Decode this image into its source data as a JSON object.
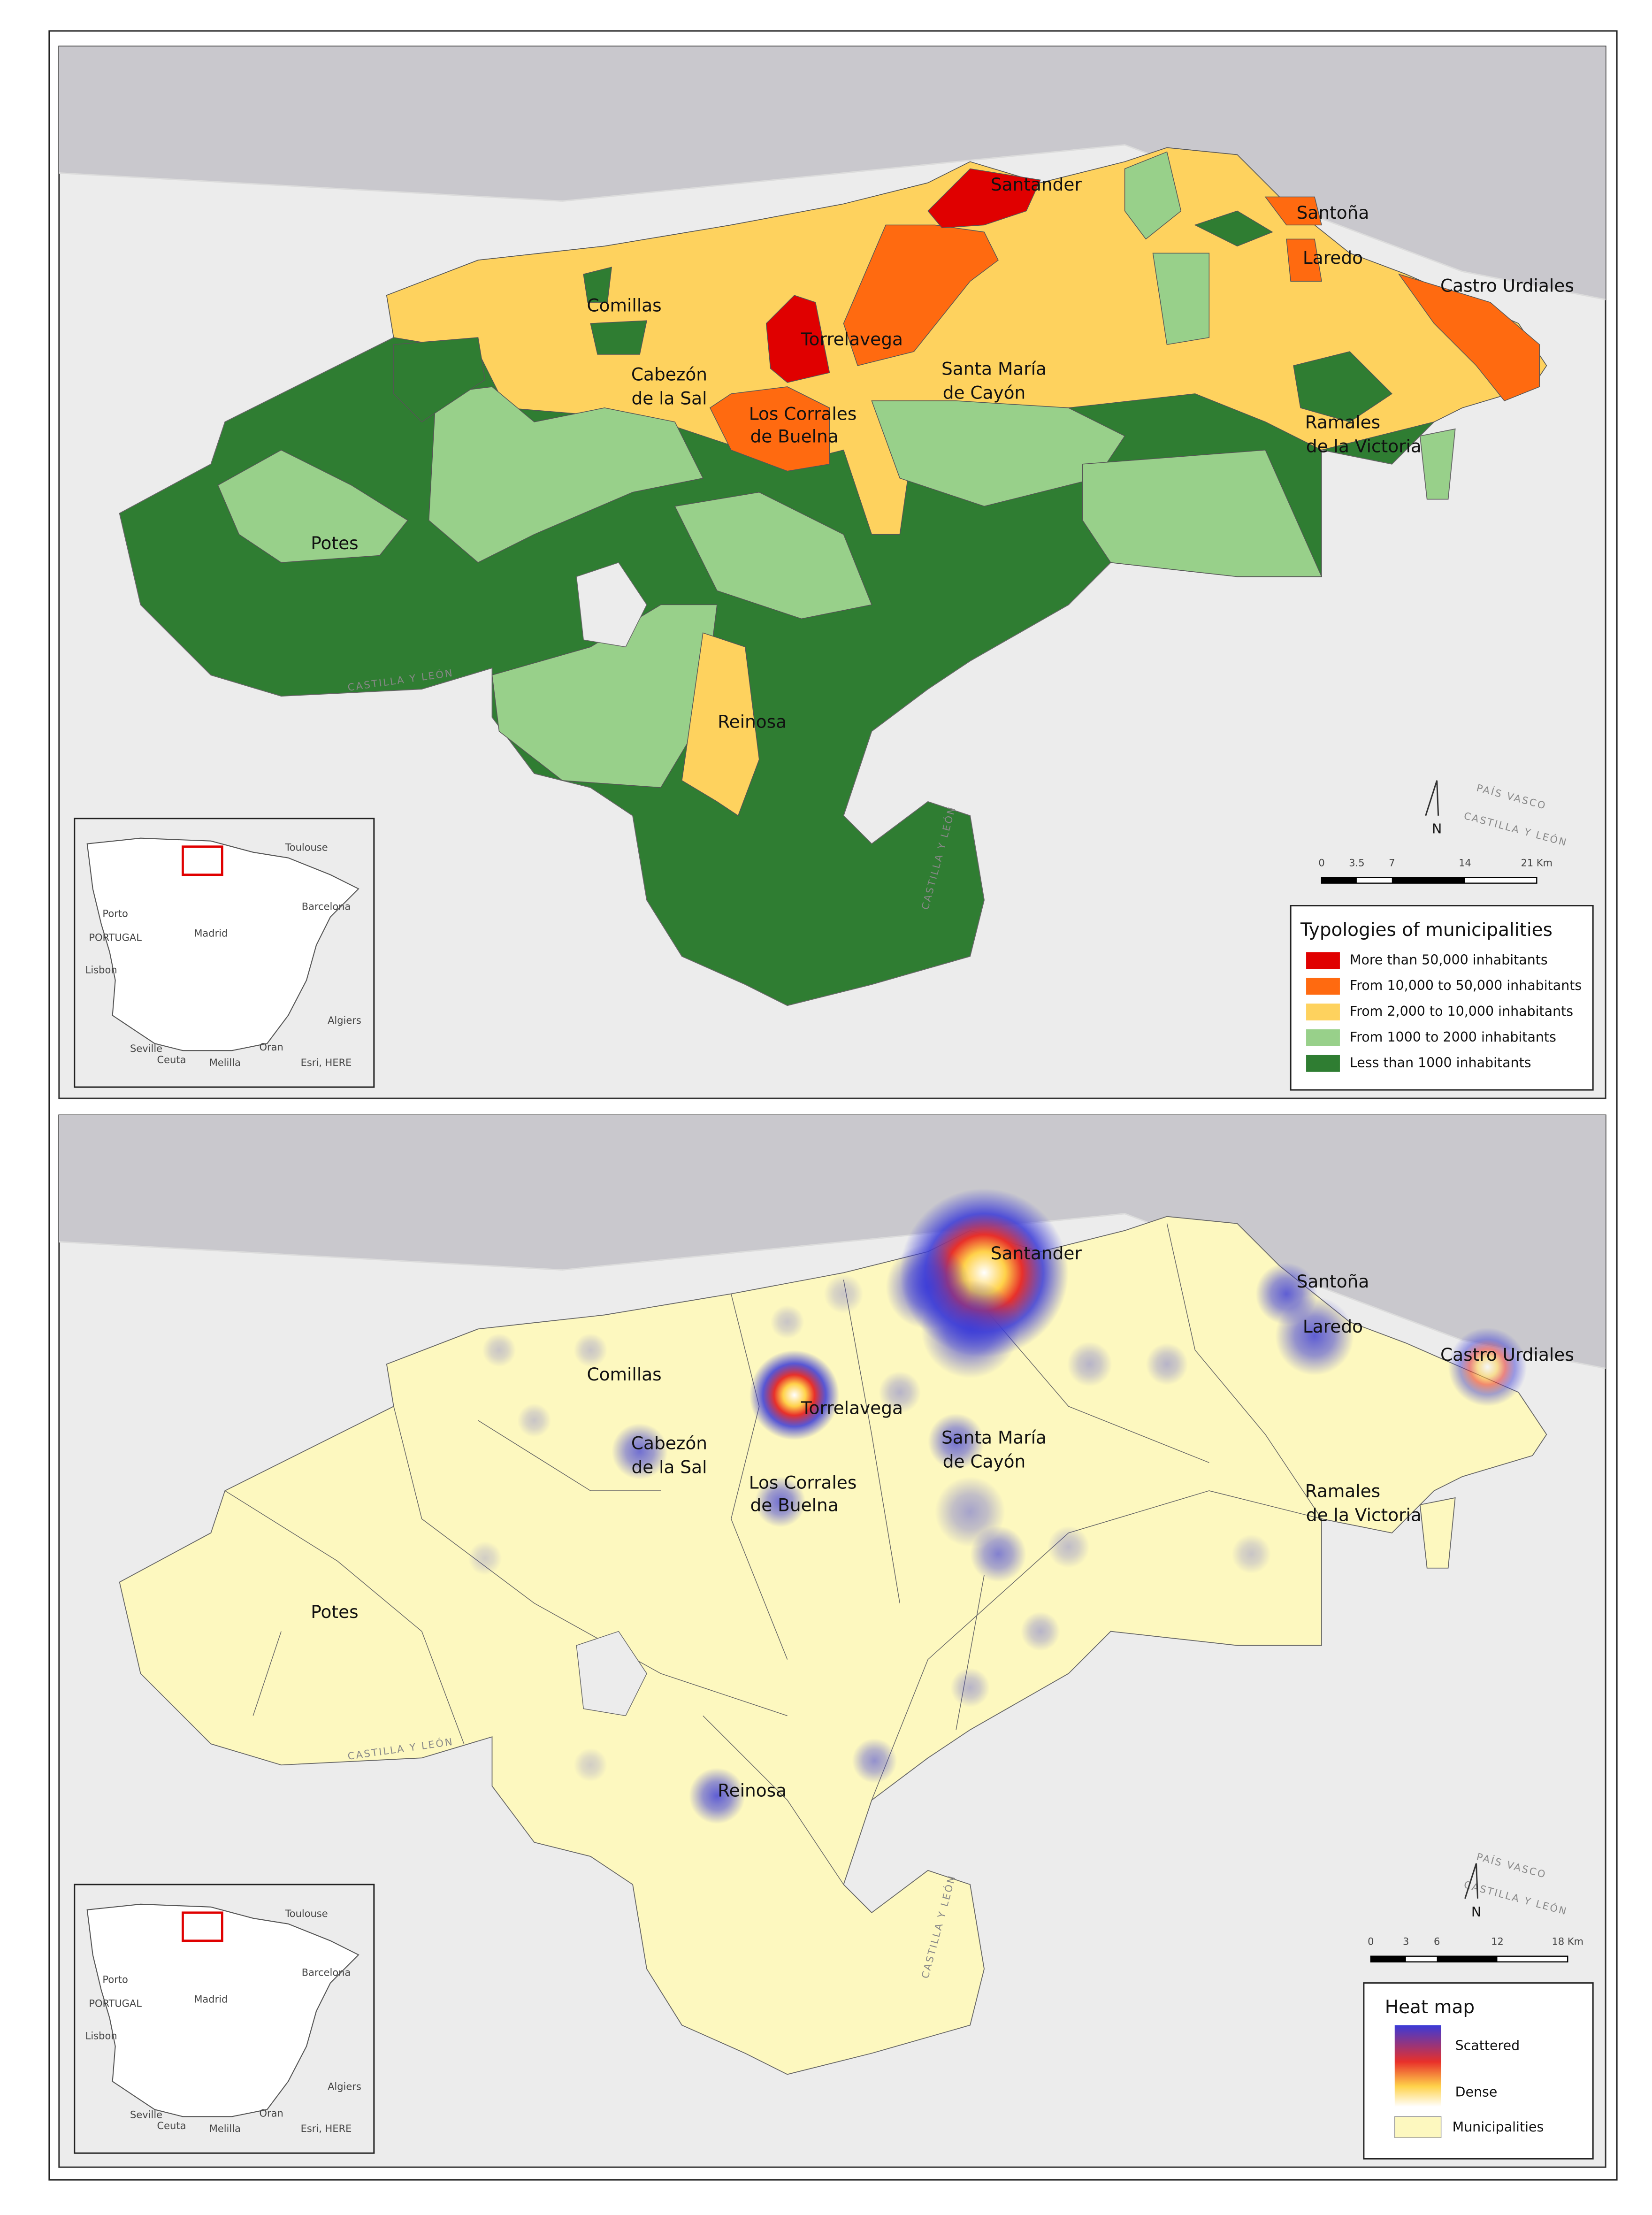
{
  "place_labels": [
    {
      "lines": [
        "Santander"
      ]
    },
    {
      "lines": [
        "Santoña"
      ]
    },
    {
      "lines": [
        "Laredo"
      ]
    },
    {
      "lines": [
        "Castro Urdiales"
      ]
    },
    {
      "lines": [
        "Comillas"
      ]
    },
    {
      "lines": [
        "Torrelavega"
      ]
    },
    {
      "lines": [
        "Cabezón",
        "de la Sal"
      ]
    },
    {
      "lines": [
        "Santa María",
        "de Cayón"
      ]
    },
    {
      "lines": [
        "Los Corrales",
        "de Buelna"
      ]
    },
    {
      "lines": [
        "Ramales",
        "de la Victoria"
      ]
    },
    {
      "lines": [
        "Potes"
      ]
    },
    {
      "lines": [
        "Reinosa"
      ]
    }
  ],
  "region_labels": [
    "CASTILLA Y LEÓN",
    "PAÍS VASCO",
    "CASTILLA Y LEÓN",
    "CASTILLA Y LEÓN"
  ],
  "inset": {
    "labels": [
      "Toulouse",
      "Porto",
      "PORTUGAL",
      "Madrid",
      "Barcelona",
      "Lisbon",
      "Seville",
      "Ceuta",
      "Melilla",
      "Oran",
      "Algiers"
    ],
    "credit": "Esri, HERE"
  },
  "north": "N",
  "maps": [
    {
      "legend": {
        "title": "Typologies of municipalities",
        "items": [
          {
            "label": "More than 50,000 inhabitants",
            "color": "#e00000"
          },
          {
            "label": "From 10,000 to 50,000 inhabitants",
            "color": "#ff6a10"
          },
          {
            "label": "From 2,000 to 10,000 inhabitants",
            "color": "#fed25e"
          },
          {
            "label": "From 1000 to 2000 inhabitants",
            "color": "#98d08a"
          },
          {
            "label": "Less than 1000 inhabitants",
            "color": "#2f7d32"
          }
        ]
      },
      "scale": [
        "0",
        "3.5",
        "7",
        "14",
        "21 Km"
      ]
    },
    {
      "legend": {
        "title": "Heat map",
        "gradient": [
          "#3a3ad8",
          "#e8302a",
          "#ffd24a",
          "#ffffff"
        ],
        "items": [
          {
            "label": "Scattered"
          },
          {
            "label": "Dense"
          },
          {
            "label": "Municipalities",
            "color": "#fdf8bf"
          }
        ]
      },
      "scale": [
        "0",
        "3",
        "6",
        "12",
        "18 Km"
      ]
    }
  ]
}
